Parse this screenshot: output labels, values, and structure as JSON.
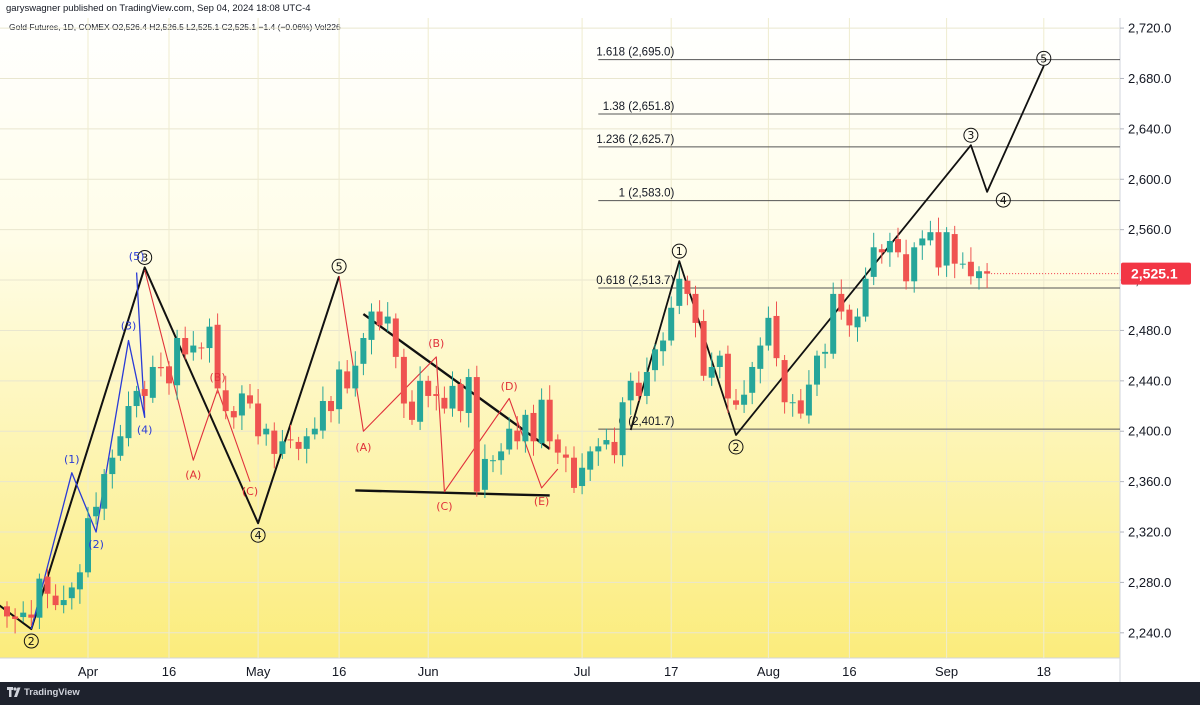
{
  "header": {
    "published": "garyswagner published on TradingView.com, Sep 04, 2024 18:08 UTC-4",
    "symbol_line": "Gold Futures, 1D, COMEX O2,526.4 H2,526.5 L2,525.1 C2,525.1 −1.4 (−0.06%) Vol226"
  },
  "footer": {
    "brand": "TradingView"
  },
  "colors": {
    "up": "#26a69a",
    "down": "#ef5350",
    "wave_blue": "#2a3bd6",
    "wave_red": "#e0313b",
    "price_tag": "#f23645"
  },
  "chart_data": {
    "type": "candlestick",
    "y_ticks": [
      "2,720.0",
      "2,680.0",
      "2,640.0",
      "2,600.0",
      "2,560.0",
      "2,520.0",
      "2,480.0",
      "2,440.0",
      "2,400.0",
      "2,360.0",
      "2,320.0",
      "2,280.0",
      "2,240.0"
    ],
    "y_tick_values": [
      2720,
      2680,
      2640,
      2600,
      2560,
      2520,
      2480,
      2440,
      2400,
      2360,
      2320,
      2280,
      2240
    ],
    "x_ticks": [
      {
        "label": "Apr",
        "index": 10
      },
      {
        "label": "16",
        "index": 20
      },
      {
        "label": "May",
        "index": 31
      },
      {
        "label": "16",
        "index": 41
      },
      {
        "label": "Jun",
        "index": 52
      },
      {
        "label": "Jul",
        "index": 71
      },
      {
        "label": "17",
        "index": 82
      },
      {
        "label": "Aug",
        "index": 94
      },
      {
        "label": "16",
        "index": 104
      },
      {
        "label": "Sep",
        "index": 116
      },
      {
        "label": "18",
        "index": 128
      }
    ],
    "ylim": [
      2220,
      2728
    ],
    "last_price_label": "2,525.1",
    "last_price": 2525.1,
    "closes": [
      2253,
      2251,
      2256,
      2252,
      2283,
      2271,
      2262,
      2266,
      2276,
      2288,
      2331,
      2340,
      2366,
      2379,
      2396,
      2420,
      2432,
      2428,
      2451,
      2450,
      2438,
      2474,
      2461,
      2468,
      2466,
      2483,
      2434,
      2416,
      2411,
      2430,
      2422,
      2396,
      2402,
      2382,
      2392,
      2393,
      2386,
      2396,
      2402,
      2424,
      2416,
      2449,
      2434,
      2452,
      2474,
      2495,
      2484,
      2491,
      2459,
      2422,
      2409,
      2440,
      2428,
      2428,
      2418,
      2436,
      2416,
      2443,
      2352,
      2378,
      2377,
      2384,
      2402,
      2392,
      2413,
      2392,
      2425,
      2392,
      2383,
      2379,
      2355,
      2371,
      2384,
      2388,
      2393,
      2381,
      2423,
      2440,
      2428,
      2447,
      2465,
      2472,
      2498,
      2521,
      2509,
      2486,
      2444,
      2451,
      2460,
      2426,
      2421,
      2429,
      2451,
      2468,
      2490,
      2458,
      2423,
      2423,
      2414,
      2437,
      2460,
      2463,
      2509,
      2495,
      2484,
      2491,
      2521,
      2546,
      2542,
      2551,
      2542,
      2519,
      2546,
      2553,
      2558,
      2530,
      2558,
      2533,
      2533,
      2523,
      2527,
      2525.1
    ],
    "fib_levels": [
      {
        "label": "1.618 (2,695.0)",
        "value": 2695.0
      },
      {
        "label": "1.38 (2,651.8)",
        "value": 2651.8
      },
      {
        "label": "1.236 (2,625.7)",
        "value": 2625.7
      },
      {
        "label": "1 (2,583.0)",
        "value": 2583.0
      },
      {
        "label": "0.618 (2,513.7)",
        "value": 2513.7
      },
      {
        "label": "0 (2,401.7)",
        "value": 2401.7
      }
    ],
    "annotations": {
      "black": [
        {
          "text": "2",
          "x": 3,
          "y": 2243,
          "pos": "below"
        },
        {
          "text": "3",
          "x": 17,
          "y": 2530,
          "pos": "above"
        },
        {
          "text": "4",
          "x": 31,
          "y": 2327,
          "pos": "below"
        },
        {
          "text": "5",
          "x": 41,
          "y": 2523,
          "pos": "above"
        },
        {
          "text": "1",
          "x": 83,
          "y": 2535,
          "pos": "above"
        },
        {
          "text": "2",
          "x": 90,
          "y": 2397,
          "pos": "below"
        },
        {
          "text": "3",
          "x": 119,
          "y": 2627,
          "pos": "above"
        },
        {
          "text": "4",
          "x": 123,
          "y": 2593,
          "pos": "below"
        },
        {
          "text": "5",
          "x": 128,
          "y": 2688,
          "pos": "above"
        }
      ],
      "blue": [
        {
          "text": "(1)",
          "x": 8,
          "y": 2370,
          "pos": "above"
        },
        {
          "text": "(2)",
          "x": 11,
          "y": 2320,
          "pos": "below"
        },
        {
          "text": "(3)",
          "x": 15,
          "y": 2476,
          "pos": "above"
        },
        {
          "text": "(4)",
          "x": 17,
          "y": 2411,
          "pos": "below"
        },
        {
          "text": "(5)",
          "x": 16,
          "y": 2531,
          "pos": "above"
        }
      ],
      "red": [
        {
          "text": "(A)",
          "x": 23,
          "y": 2375,
          "pos": "below"
        },
        {
          "text": "(B)",
          "x": 26,
          "y": 2435,
          "pos": "above"
        },
        {
          "text": "(C)",
          "x": 30,
          "y": 2362,
          "pos": "below"
        },
        {
          "text": "(A)",
          "x": 44,
          "y": 2397,
          "pos": "below"
        },
        {
          "text": "(B)",
          "x": 53,
          "y": 2462,
          "pos": "above"
        },
        {
          "text": "(C)",
          "x": 54,
          "y": 2350,
          "pos": "below"
        },
        {
          "text": "(D)",
          "x": 62,
          "y": 2428,
          "pos": "above"
        },
        {
          "text": "(E)",
          "x": 66,
          "y": 2354,
          "pos": "below"
        }
      ]
    }
  }
}
